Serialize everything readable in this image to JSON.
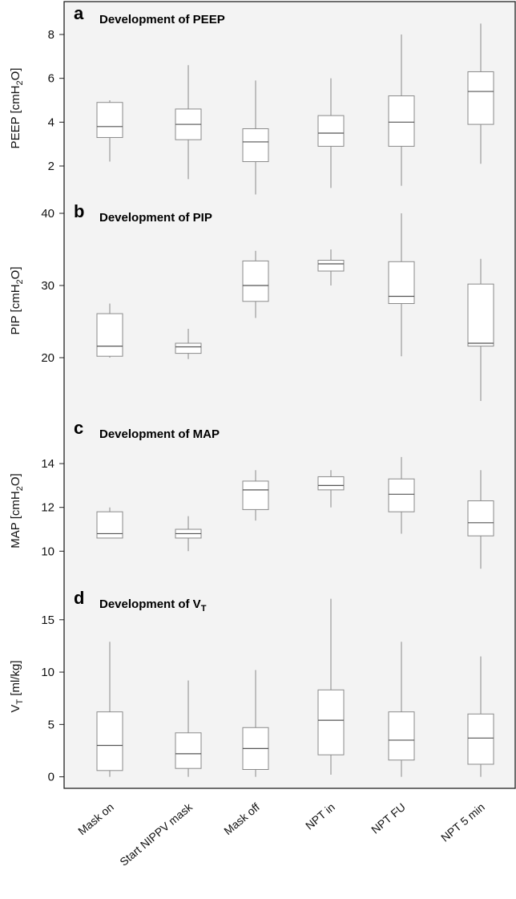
{
  "chart_data": [
    {
      "type": "box",
      "letter": "a",
      "title": "Development of PEEP",
      "title_sub": "",
      "ylabel": "PEEP [cmH",
      "ylabel_sub": "2",
      "ylabel_tail": "O]",
      "yticks": [
        2,
        4,
        6,
        8
      ],
      "ylim": [
        0.5,
        9.5
      ],
      "boxes": [
        {
          "category": "Mask on",
          "min": 2.2,
          "q1": 3.3,
          "median": 3.8,
          "q3": 4.9,
          "max": 5.0
        },
        {
          "category": "Start NIPPV mask",
          "min": 1.4,
          "q1": 3.2,
          "median": 3.9,
          "q3": 4.6,
          "max": 6.6
        },
        {
          "category": "Mask off",
          "min": 0.7,
          "q1": 2.2,
          "median": 3.1,
          "q3": 3.7,
          "max": 5.9
        },
        {
          "category": "NPT in",
          "min": 1.0,
          "q1": 2.9,
          "median": 3.5,
          "q3": 4.3,
          "max": 6.0
        },
        {
          "category": "NPT FU",
          "min": 1.1,
          "q1": 2.9,
          "median": 4.0,
          "q3": 5.2,
          "max": 8.0
        },
        {
          "category": "NPT 5 min",
          "min": 2.1,
          "q1": 3.9,
          "median": 5.4,
          "q3": 6.3,
          "max": 8.5
        }
      ]
    },
    {
      "type": "box",
      "letter": "b",
      "title": "Development of PIP",
      "title_sub": "",
      "ylabel": "PIP [cmH",
      "ylabel_sub": "2",
      "ylabel_tail": "O]",
      "yticks": [
        20,
        30,
        40
      ],
      "ylim": [
        12,
        42
      ],
      "boxes": [
        {
          "category": "Mask on",
          "min": 20.0,
          "q1": 20.2,
          "median": 21.6,
          "q3": 26.1,
          "max": 27.5
        },
        {
          "category": "Start NIPPV mask",
          "min": 19.8,
          "q1": 20.6,
          "median": 21.5,
          "q3": 22.0,
          "max": 24.0
        },
        {
          "category": "Mask off",
          "min": 25.5,
          "q1": 27.8,
          "median": 30.0,
          "q3": 33.4,
          "max": 34.8
        },
        {
          "category": "NPT in",
          "min": 30.0,
          "q1": 32.0,
          "median": 33.0,
          "q3": 33.5,
          "max": 35.0
        },
        {
          "category": "NPT FU",
          "min": 20.2,
          "q1": 27.5,
          "median": 28.5,
          "q3": 33.3,
          "max": 40.0
        },
        {
          "category": "NPT 5 min",
          "min": 14.0,
          "q1": 21.6,
          "median": 22.0,
          "q3": 30.2,
          "max": 33.7
        }
      ]
    },
    {
      "type": "box",
      "letter": "c",
      "title": "Development of MAP",
      "title_sub": "",
      "ylabel": "MAP [cmH",
      "ylabel_sub": "2",
      "ylabel_tail": "O]",
      "yticks": [
        10,
        12,
        14
      ],
      "ylim": [
        8.4,
        16.2
      ],
      "boxes": [
        {
          "category": "Mask on",
          "min": 10.6,
          "q1": 10.6,
          "median": 10.8,
          "q3": 11.8,
          "max": 12.0
        },
        {
          "category": "Start NIPPV mask",
          "min": 10.0,
          "q1": 10.6,
          "median": 10.8,
          "q3": 11.0,
          "max": 11.6
        },
        {
          "category": "Mask off",
          "min": 11.4,
          "q1": 11.9,
          "median": 12.8,
          "q3": 13.2,
          "max": 13.7
        },
        {
          "category": "NPT in",
          "min": 12.0,
          "q1": 12.8,
          "median": 13.0,
          "q3": 13.4,
          "max": 13.7
        },
        {
          "category": "NPT FU",
          "min": 10.8,
          "q1": 11.8,
          "median": 12.6,
          "q3": 13.3,
          "max": 14.3
        },
        {
          "category": "NPT 5 min",
          "min": 9.2,
          "q1": 10.7,
          "median": 11.3,
          "q3": 12.3,
          "max": 13.7
        }
      ]
    },
    {
      "type": "box",
      "letter": "d",
      "title": "Development of V",
      "title_sub": "T",
      "ylabel": "V",
      "ylabel_sub": "T",
      "ylabel_tail": " [ml/kg]",
      "yticks": [
        0,
        5,
        10,
        15
      ],
      "ylim": [
        -1.1,
        18.2
      ],
      "boxes": [
        {
          "category": "Mask on",
          "min": 0.0,
          "q1": 0.6,
          "median": 3.0,
          "q3": 6.2,
          "max": 12.9
        },
        {
          "category": "Start NIPPV mask",
          "min": 0.0,
          "q1": 0.8,
          "median": 2.2,
          "q3": 4.2,
          "max": 9.2
        },
        {
          "category": "Mask off",
          "min": 0.0,
          "q1": 0.7,
          "median": 2.7,
          "q3": 4.7,
          "max": 10.2
        },
        {
          "category": "NPT in",
          "min": 0.2,
          "q1": 2.1,
          "median": 5.4,
          "q3": 8.3,
          "max": 17.0
        },
        {
          "category": "NPT FU",
          "min": 0.0,
          "q1": 1.6,
          "median": 3.5,
          "q3": 6.2,
          "max": 12.9
        },
        {
          "category": "NPT 5 min",
          "min": 0.0,
          "q1": 1.2,
          "median": 3.7,
          "q3": 6.0,
          "max": 11.5
        }
      ]
    }
  ],
  "categories": [
    "Mask on",
    "Start NIPPV mask",
    "Mask off",
    "NPT in",
    "NPT FU",
    "NPT 5 min"
  ],
  "colors": {
    "background": "#f3f3f3",
    "box_stroke": "#8a8a8a",
    "median": "#555555",
    "frame": "#222222"
  }
}
